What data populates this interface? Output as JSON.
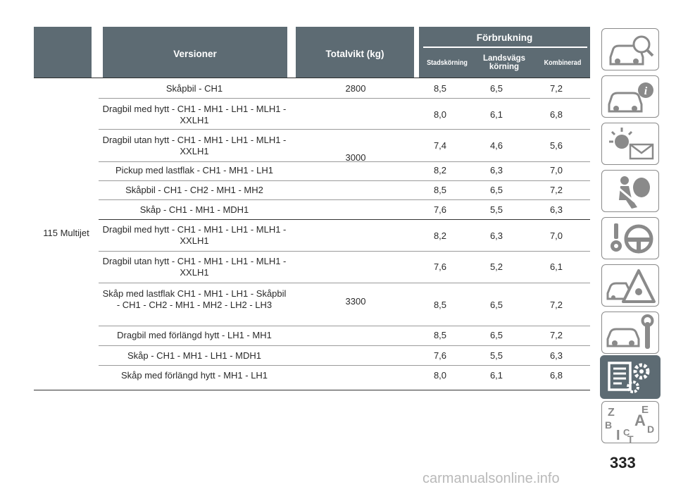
{
  "header": {
    "versions": "Versioner",
    "weight": "Totalvikt (kg)",
    "consumption": "Förbrukning",
    "city": "Stadskörning",
    "highway": "Landsvägs körning",
    "combined": "Kombinerad"
  },
  "engine": "115 Multijet",
  "rows": [
    {
      "version": "Skåpbil - CH1",
      "weight": "2800",
      "city": "8,5",
      "highway": "6,5",
      "combined": "7,2"
    },
    {
      "version": "Dragbil med hytt - CH1 - MH1 - LH1 - MLH1 - XXLH1",
      "city": "8,0",
      "highway": "6,1",
      "combined": "6,8"
    },
    {
      "version": "Dragbil utan hytt - CH1 - MH1 - LH1 - MLH1 - XXLH1",
      "city": "7,4",
      "highway": "4,6",
      "combined": "5,6"
    },
    {
      "version": "Pickup med lastflak - CH1 - MH1 - LH1",
      "city": "8,2",
      "highway": "6,3",
      "combined": "7,0"
    },
    {
      "version": "Skåpbil - CH1 - CH2 - MH1 - MH2",
      "city": "8,5",
      "highway": "6,5",
      "combined": "7,2"
    },
    {
      "version": "Skåp - CH1 - MH1 - MDH1",
      "city": "7,6",
      "highway": "5,5",
      "combined": "6,3"
    },
    {
      "version": "Dragbil med hytt - CH1 - MH1 - LH1 - MLH1 - XXLH1",
      "city": "8,2",
      "highway": "6,3",
      "combined": "7,0"
    },
    {
      "version": "Dragbil utan hytt - CH1 - MH1 - LH1 - MLH1 - XXLH1",
      "city": "7,6",
      "highway": "5,2",
      "combined": "6,1"
    },
    {
      "version": "Skåp med lastflak CH1 - MH1 - LH1 - Skåpbil - CH1 - CH2 - MH1 - MH2 - LH2 - LH3",
      "city": "8,5",
      "highway": "6,5",
      "combined": "7,2"
    },
    {
      "version": "Dragbil med förlängd hytt - LH1 - MH1",
      "city": "8,5",
      "highway": "6,5",
      "combined": "7,2"
    },
    {
      "version": "Skåp - CH1 - MH1 - LH1 - MDH1",
      "city": "7,6",
      "highway": "5,5",
      "combined": "6,3"
    },
    {
      "version": "Skåp med förlängd hytt - MH1 - LH1",
      "city": "8,0",
      "highway": "6,1",
      "combined": "6,8"
    }
  ],
  "weight_groups": [
    "3000",
    "3300"
  ],
  "side_tabs": [
    {
      "icon": "car-search-icon"
    },
    {
      "icon": "car-info-icon"
    },
    {
      "icon": "warning-light-message-icon"
    },
    {
      "icon": "airbag-person-icon"
    },
    {
      "icon": "key-steering-wheel-icon"
    },
    {
      "icon": "car-hazard-triangle-icon"
    },
    {
      "icon": "car-wrench-icon"
    },
    {
      "icon": "spec-list-gear-icon",
      "active": true
    },
    {
      "icon": "alphabet-index-icon"
    }
  ],
  "page_number": "333",
  "watermark": "carmanualsonline.info",
  "colors": {
    "header": "#5d6b73",
    "tab_border": "#8a8a8a"
  }
}
